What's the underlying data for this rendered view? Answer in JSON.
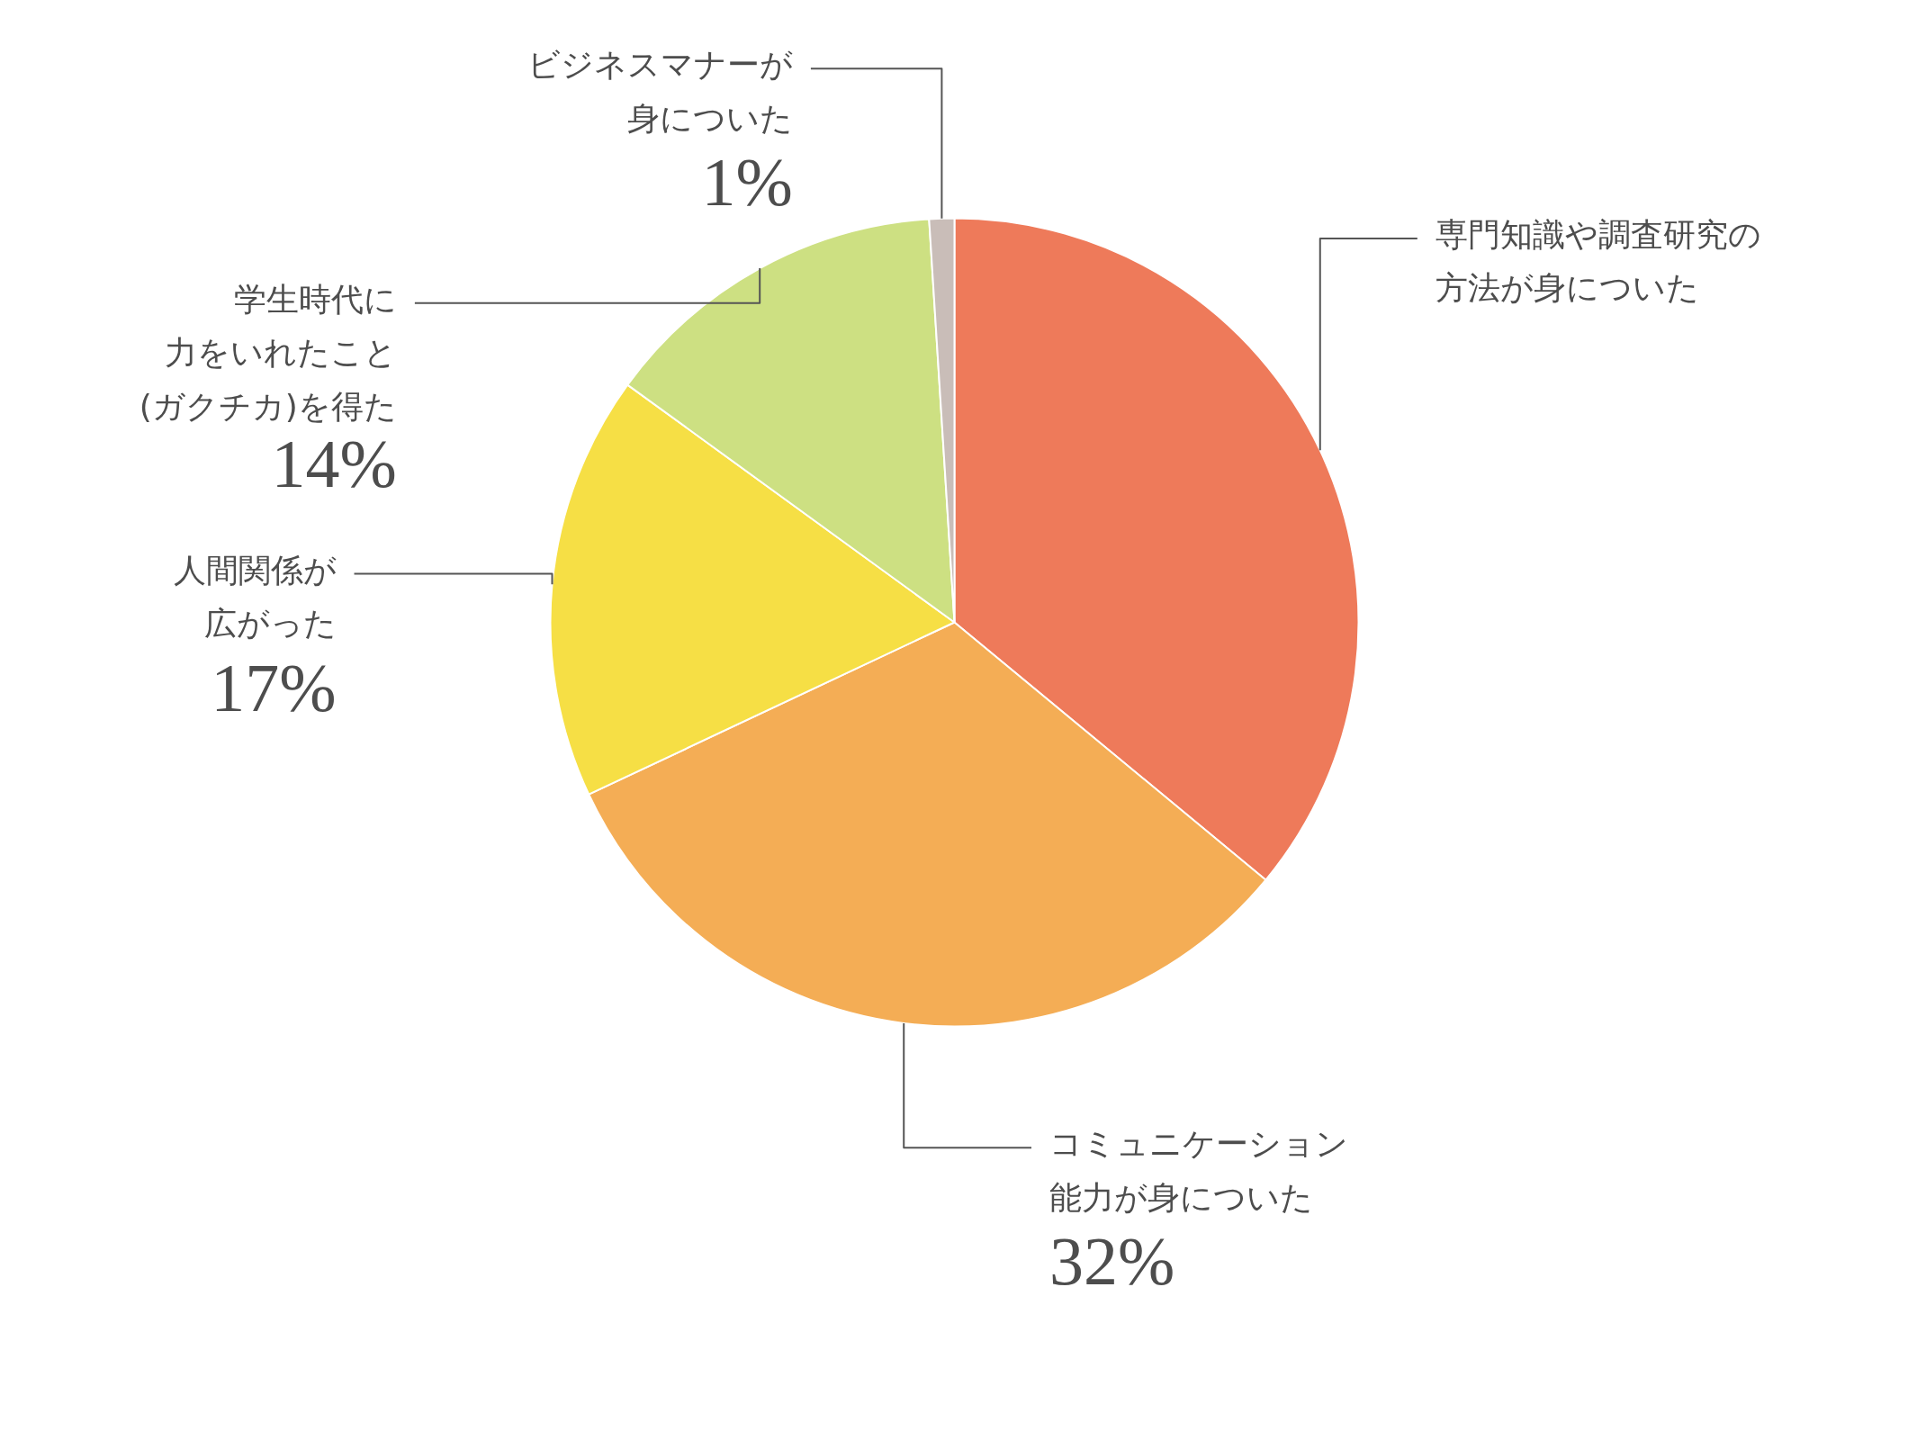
{
  "chart_data": {
    "type": "pie",
    "categories": [
      "専門知識や調査研究の方法が身についた",
      "コミュニケーション能力が身についた",
      "人間関係が広がった",
      "学生時代に力をいれたこと(ガクチカ)を得た",
      "ビジネスマナーが身についた"
    ],
    "values": [
      36,
      32,
      17,
      14,
      1
    ],
    "colors": [
      "#ee7a5a",
      "#f4ad55",
      "#f6df45",
      "#cde082",
      "#c9bdb8"
    ],
    "value_labels": [
      null,
      "32%",
      "17%",
      "14%",
      "1%"
    ]
  }
}
